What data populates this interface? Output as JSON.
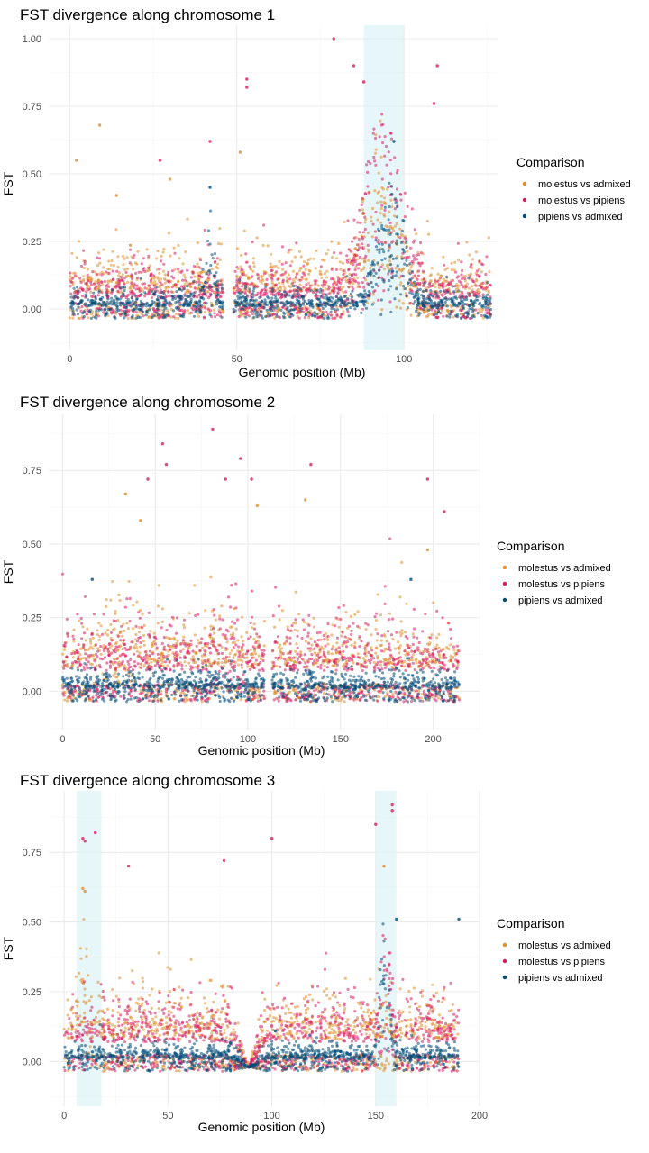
{
  "colors": {
    "molestus_vs_admixed": "#E08E2B",
    "molestus_vs_pipiens": "#D81B60",
    "pipiens_vs_admixed": "#004C7A",
    "highlight": "#D6F0F5",
    "grid_major": "#EBEBEB",
    "grid_minor": "#F5F5F5"
  },
  "chart_data": [
    {
      "type": "scatter",
      "title": "FST divergence along chromosome 1",
      "xlabel": "Genomic position (Mb)",
      "ylabel": "FST",
      "xlim": [
        -6,
        128
      ],
      "ylim": [
        -0.15,
        1.05
      ],
      "x_ticks": [
        0,
        50,
        100
      ],
      "y_ticks": [
        0.0,
        0.25,
        0.5,
        0.75,
        1.0
      ],
      "y_tick_labels": [
        "0.00",
        "0.25",
        "0.50",
        "0.75",
        "1.00"
      ],
      "chrom_length_mb": 126,
      "gaps_mb": [
        [
          46,
          49
        ]
      ],
      "highlight_regions_mb": [
        [
          88,
          100
        ]
      ],
      "legend_title": "Comparison",
      "legend_position": "right",
      "series": [
        {
          "name": "molestus vs admixed",
          "color": "#E08E2B",
          "background": {
            "mean": 0.06,
            "spread": 0.09
          },
          "peaks": [
            {
              "center_mb": 92,
              "width_mb": 10,
              "height": 0.35
            }
          ],
          "outliers": [
            {
              "x": 9,
              "y": 0.68
            },
            {
              "x": 2,
              "y": 0.55
            },
            {
              "x": 51,
              "y": 0.58
            },
            {
              "x": 14,
              "y": 0.42
            },
            {
              "x": 30,
              "y": 0.48
            }
          ]
        },
        {
          "name": "molestus vs pipiens",
          "color": "#D81B60",
          "background": {
            "mean": 0.04,
            "spread": 0.08
          },
          "peaks": [
            {
              "center_mb": 94,
              "width_mb": 13,
              "height": 0.45
            }
          ],
          "outliers": [
            {
              "x": 79,
              "y": 1.0
            },
            {
              "x": 53,
              "y": 0.85
            },
            {
              "x": 53,
              "y": 0.82
            },
            {
              "x": 85,
              "y": 0.9
            },
            {
              "x": 88,
              "y": 0.84
            },
            {
              "x": 110,
              "y": 0.9
            },
            {
              "x": 42,
              "y": 0.62
            },
            {
              "x": 109,
              "y": 0.76
            },
            {
              "x": 27,
              "y": 0.55
            }
          ]
        },
        {
          "name": "pipiens vs admixed",
          "color": "#004C7A",
          "background": {
            "mean": 0.01,
            "spread": 0.04
          },
          "peaks": [
            {
              "center_mb": 96,
              "width_mb": 9,
              "height": 0.3
            },
            {
              "center_mb": 42,
              "width_mb": 3,
              "height": 0.2
            }
          ],
          "outliers": [
            {
              "x": 97,
              "y": 0.62
            },
            {
              "x": 42,
              "y": 0.45
            }
          ]
        }
      ]
    },
    {
      "type": "scatter",
      "title": "FST divergence along chromosome 2",
      "xlabel": "Genomic position (Mb)",
      "ylabel": "FST",
      "xlim": [
        -7,
        225
      ],
      "ylim": [
        -0.13,
        0.94
      ],
      "x_ticks": [
        0,
        50,
        100,
        150,
        200
      ],
      "y_ticks": [
        0.0,
        0.25,
        0.5,
        0.75
      ],
      "y_tick_labels": [
        "0.00",
        "0.25",
        "0.50",
        "0.75"
      ],
      "chrom_length_mb": 214,
      "gaps_mb": [
        [
          109,
          113
        ]
      ],
      "highlight_regions_mb": [],
      "legend_title": "Comparison",
      "legend_position": "right",
      "series": [
        {
          "name": "molestus vs admixed",
          "color": "#E08E2B",
          "background": {
            "mean": 0.08,
            "spread": 0.1
          },
          "peaks": [
            {
              "center_mb": 30,
              "width_mb": 15,
              "height": 0.08
            }
          ],
          "outliers": [
            {
              "x": 34,
              "y": 0.67
            },
            {
              "x": 105,
              "y": 0.63
            },
            {
              "x": 131,
              "y": 0.65
            },
            {
              "x": 42,
              "y": 0.58
            },
            {
              "x": 197,
              "y": 0.48
            }
          ]
        },
        {
          "name": "molestus vs pipiens",
          "color": "#D81B60",
          "background": {
            "mean": 0.07,
            "spread": 0.1
          },
          "peaks": [
            {
              "center_mb": 90,
              "width_mb": 12,
              "height": 0.08
            }
          ],
          "outliers": [
            {
              "x": 54,
              "y": 0.84
            },
            {
              "x": 81,
              "y": 0.89
            },
            {
              "x": 56,
              "y": 0.77
            },
            {
              "x": 96,
              "y": 0.79
            },
            {
              "x": 134,
              "y": 0.77
            },
            {
              "x": 197,
              "y": 0.72
            },
            {
              "x": 46,
              "y": 0.72
            },
            {
              "x": 102,
              "y": 0.72
            },
            {
              "x": 88,
              "y": 0.72
            },
            {
              "x": 206,
              "y": 0.61
            }
          ]
        },
        {
          "name": "pipiens vs admixed",
          "color": "#004C7A",
          "background": {
            "mean": 0.01,
            "spread": 0.035
          },
          "peaks": [],
          "outliers": [
            {
              "x": 16,
              "y": 0.38
            },
            {
              "x": 188,
              "y": 0.38
            }
          ]
        }
      ]
    },
    {
      "type": "scatter",
      "title": "FST divergence along chromosome 3",
      "xlabel": "Genomic position (Mb)",
      "ylabel": "FST",
      "xlim": [
        -7,
        200
      ],
      "ylim": [
        -0.16,
        0.97
      ],
      "x_ticks": [
        0,
        50,
        100,
        150,
        200
      ],
      "y_ticks": [
        0.0,
        0.25,
        0.5,
        0.75
      ],
      "y_tick_labels": [
        "0.00",
        "0.25",
        "0.50",
        "0.75"
      ],
      "chrom_length_mb": 190,
      "gaps_mb": [],
      "dip_mb": [
        [
          80,
          98
        ]
      ],
      "highlight_regions_mb": [
        [
          6,
          18
        ],
        [
          150,
          160
        ]
      ],
      "legend_title": "Comparison",
      "legend_position": "right",
      "series": [
        {
          "name": "molestus vs admixed",
          "color": "#E08E2B",
          "background": {
            "mean": 0.08,
            "spread": 0.1
          },
          "peaks": [
            {
              "center_mb": 9,
              "width_mb": 4,
              "height": 0.3
            }
          ],
          "outliers": [
            {
              "x": 9,
              "y": 0.62
            },
            {
              "x": 10,
              "y": 0.61
            },
            {
              "x": 154,
              "y": 0.7
            }
          ]
        },
        {
          "name": "molestus vs pipiens",
          "color": "#D81B60",
          "background": {
            "mean": 0.07,
            "spread": 0.1
          },
          "peaks": [
            {
              "center_mb": 155,
              "width_mb": 4,
              "height": 0.3
            }
          ],
          "outliers": [
            {
              "x": 9,
              "y": 0.8
            },
            {
              "x": 15,
              "y": 0.82
            },
            {
              "x": 10,
              "y": 0.79
            },
            {
              "x": 100,
              "y": 0.8
            },
            {
              "x": 158,
              "y": 0.92
            },
            {
              "x": 158,
              "y": 0.9
            },
            {
              "x": 150,
              "y": 0.85
            },
            {
              "x": 77,
              "y": 0.72
            },
            {
              "x": 31,
              "y": 0.7
            }
          ]
        },
        {
          "name": "pipiens vs admixed",
          "color": "#004C7A",
          "background": {
            "mean": 0.01,
            "spread": 0.035
          },
          "peaks": [
            {
              "center_mb": 154,
              "width_mb": 5,
              "height": 0.3
            }
          ],
          "outliers": [
            {
              "x": 160,
              "y": 0.51
            },
            {
              "x": 190,
              "y": 0.51
            }
          ]
        }
      ]
    }
  ]
}
